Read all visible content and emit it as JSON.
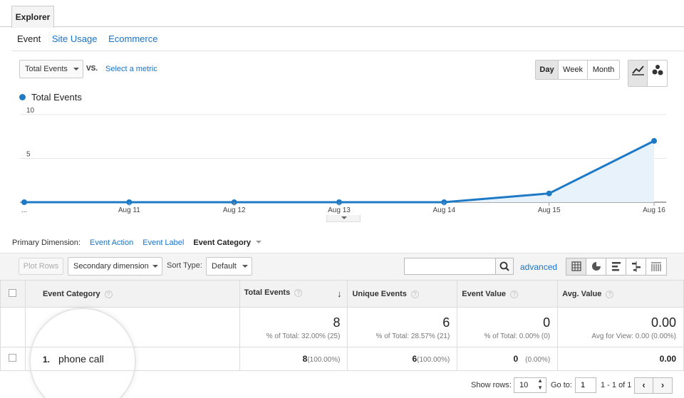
{
  "tabs": {
    "explorer": "Explorer"
  },
  "subtabs": [
    "Event",
    "Site Usage",
    "Ecommerce"
  ],
  "metric": {
    "selected": "Total Events",
    "vs": "VS.",
    "select_metric": "Select a metric"
  },
  "period": {
    "day": "Day",
    "week": "Week",
    "month": "Month",
    "active": "Day"
  },
  "chart_data": {
    "type": "area",
    "series": [
      {
        "name": "Total Events",
        "values": [
          0,
          0,
          0,
          0,
          0,
          1,
          7
        ]
      }
    ],
    "categories": [
      "...",
      "Aug 11",
      "Aug 12",
      "Aug 13",
      "Aug 14",
      "Aug 15",
      "Aug 16"
    ],
    "yticks": [
      10,
      5
    ],
    "ylim": [
      0,
      10
    ],
    "color": "#1f7ac6"
  },
  "primary_dimension": {
    "label": "Primary Dimension:",
    "options": [
      "Event Action",
      "Event Label"
    ],
    "current": "Event Category"
  },
  "toolbar": {
    "plot_rows": "Plot Rows",
    "secondary_dimension": "Secondary dimension",
    "sort_type_label": "Sort Type:",
    "sort_type": "Default",
    "search_value": "",
    "advanced": "advanced"
  },
  "table": {
    "headers": [
      "Event Category",
      "Total Events",
      "Unique Events",
      "Event Value",
      "Avg. Value"
    ],
    "totals": [
      {
        "value": "8",
        "sub": "% of Total: 32.00% (25)"
      },
      {
        "value": "6",
        "sub": "% of Total: 28.57% (21)"
      },
      {
        "value": "0",
        "sub": "% of Total: 0.00% (0)"
      },
      {
        "value": "0.00",
        "sub": "Avg for View: 0.00 (0.00%)"
      }
    ],
    "rows": [
      {
        "index": "1.",
        "category": "phone call",
        "total_events": "8",
        "total_events_pct": "(100.00%)",
        "unique_events": "6",
        "unique_events_pct": "(100.00%)",
        "event_value": "0",
        "event_value_pct": "(0.00%)",
        "avg_value": "0.00"
      }
    ]
  },
  "footer": {
    "show_rows_label": "Show rows:",
    "show_rows": "10",
    "goto_label": "Go to:",
    "goto": "1",
    "range": "1 - 1 of 1"
  }
}
